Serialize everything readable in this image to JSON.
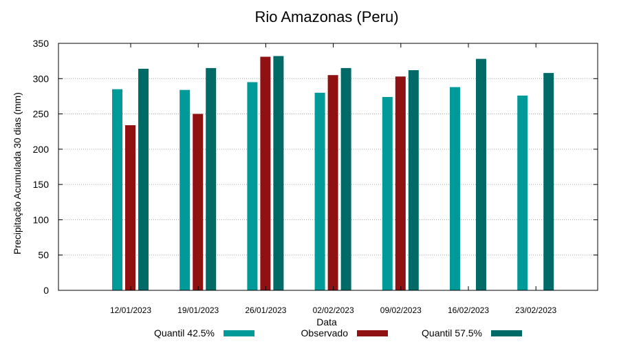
{
  "chart_data": {
    "type": "bar",
    "title": "Rio Amazonas (Peru)",
    "xlabel": "Data",
    "ylabel": "Precipitação Acumulada 30 dias (mm)",
    "ylim": [
      0,
      350
    ],
    "yticks": [
      0,
      50,
      100,
      150,
      200,
      250,
      300,
      350
    ],
    "grid": true,
    "legend_position": "bottom",
    "categories": [
      "12/01/2023",
      "19/01/2023",
      "26/01/2023",
      "02/02/2023",
      "09/02/2023",
      "16/02/2023",
      "23/02/2023"
    ],
    "series": [
      {
        "name": "Quantil 42.5%",
        "color": "#009b98",
        "values": [
          285,
          284,
          295,
          280,
          274,
          288,
          276
        ]
      },
      {
        "name": "Observado",
        "color": "#8f1111",
        "values": [
          234,
          250,
          331,
          305,
          303,
          null,
          null
        ]
      },
      {
        "name": "Quantil 57.5%",
        "color": "#006b66",
        "values": [
          314,
          315,
          332,
          315,
          312,
          328,
          308
        ]
      }
    ]
  }
}
